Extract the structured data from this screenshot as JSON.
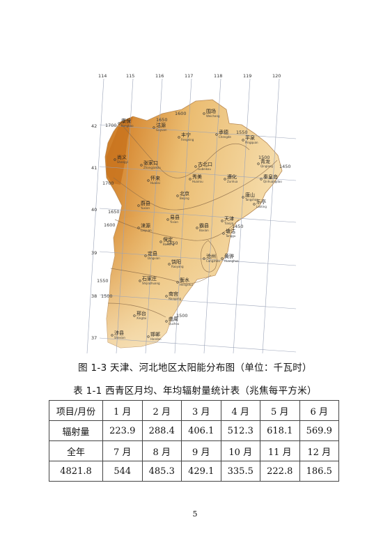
{
  "figure": {
    "caption": "图 1-3 天津、河北地区太阳能分布图（单位：千瓦时）",
    "longitude_ticks": [
      "114",
      "115",
      "116",
      "117",
      "118",
      "119",
      "120"
    ],
    "latitude_ticks": [
      "42",
      "41",
      "40",
      "39",
      "38",
      "37"
    ],
    "isolines": [
      "1700",
      "1650",
      "1600",
      "1550",
      "1500",
      "1450",
      "1700",
      "1650",
      "1600",
      "1550",
      "1500",
      "1450",
      "1450",
      "1500"
    ],
    "places": [
      {
        "cn": "围场",
        "en": "Weichang"
      },
      {
        "cn": "康保",
        "en": "Kangbao"
      },
      {
        "cn": "沽源",
        "en": "Guyuan"
      },
      {
        "cn": "丰宁",
        "en": "Fengning"
      },
      {
        "cn": "承德",
        "en": "Chengde"
      },
      {
        "cn": "平泉",
        "en": "Pingquan"
      },
      {
        "cn": "尚义",
        "en": "Shangyi"
      },
      {
        "cn": "张家口",
        "en": "Zhangjiakou"
      },
      {
        "cn": "古北口",
        "en": "Gubeikou"
      },
      {
        "cn": "青龙",
        "en": "Qinglong"
      },
      {
        "cn": "怀来",
        "en": "Huailai"
      },
      {
        "cn": "秀美",
        "en": "Huairou"
      },
      {
        "cn": "遵化",
        "en": "Zunhua"
      },
      {
        "cn": "秦皇岛",
        "en": "Qinhuangdao"
      },
      {
        "cn": "北京",
        "en": "Beijing"
      },
      {
        "cn": "唐山",
        "en": "Tangshan"
      },
      {
        "cn": "乐亭",
        "en": "Laoting"
      },
      {
        "cn": "蔚县",
        "en": "Yuxian"
      },
      {
        "cn": "易县",
        "en": "Yixian"
      },
      {
        "cn": "天津",
        "en": "Tianjin"
      },
      {
        "cn": "涞源",
        "en": "Laiyuan"
      },
      {
        "cn": "霸县",
        "en": "Baxian"
      },
      {
        "cn": "塘沽",
        "en": "Tanggu"
      },
      {
        "cn": "保定",
        "en": "Baoding"
      },
      {
        "cn": "定县",
        "en": "Dingxian"
      },
      {
        "cn": "沧州",
        "en": "Cangzhou"
      },
      {
        "cn": "黄骅",
        "en": "Huanghua"
      },
      {
        "cn": "饶阳",
        "en": "Raoyang"
      },
      {
        "cn": "石家庄",
        "en": "Shijiazhuang"
      },
      {
        "cn": "衡水",
        "en": "Hengshui"
      },
      {
        "cn": "南宫",
        "en": "Nangong"
      },
      {
        "cn": "邢台",
        "en": "Xingtai"
      },
      {
        "cn": "曲周",
        "en": "Quzhou"
      },
      {
        "cn": "涉县",
        "en": "Shexian"
      },
      {
        "cn": "邯郸",
        "en": "Handan"
      }
    ],
    "colors": {
      "low": "#f6dfb0",
      "mid": "#ebbd72",
      "high": "#d98f3a",
      "peak": "#c9741f"
    }
  },
  "table": {
    "caption": "表 1-1 西青区月均、年均辐射量统计表（兆焦每平方米）",
    "rows": [
      [
        "项目/月份",
        "1 月",
        "2 月",
        "3 月",
        "4 月",
        "5 月",
        "6 月"
      ],
      [
        "辐射量",
        "223.9",
        "288.4",
        "406.1",
        "512.3",
        "618.1",
        "569.9"
      ],
      [
        "全年",
        "7 月",
        "8 月",
        "9 月",
        "10 月",
        "11 月",
        "12 月"
      ],
      [
        "4821.8",
        "544",
        "485.3",
        "429.1",
        "335.5",
        "222.8",
        "186.5"
      ]
    ]
  },
  "page_number": "5"
}
